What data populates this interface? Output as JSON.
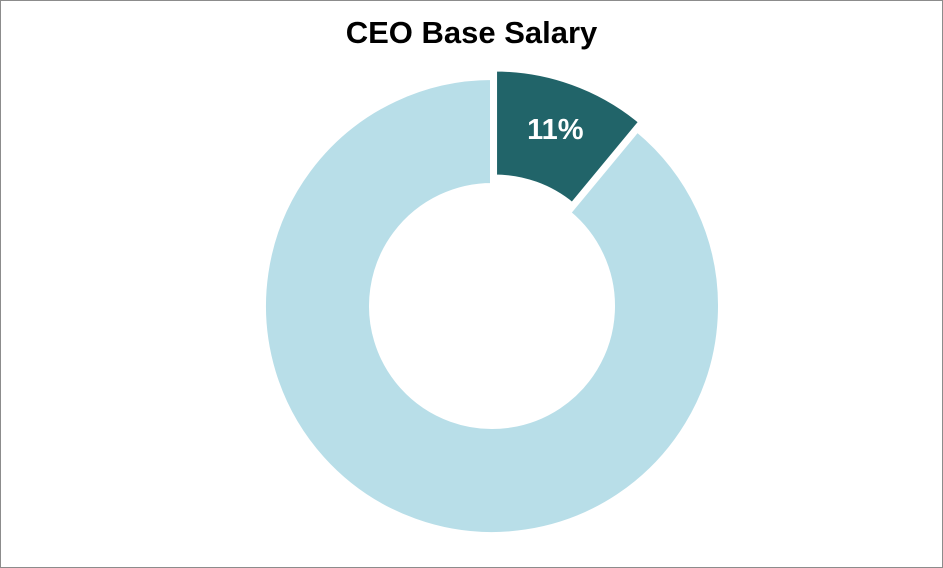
{
  "chart_data": {
    "type": "pie",
    "variant": "donut",
    "title": "CEO Base Salary",
    "slices": [
      {
        "value": 11,
        "label": "11%",
        "color": "#216469",
        "exploded": true,
        "show_label": true
      },
      {
        "value": 89,
        "label": "",
        "color": "#b8dee8",
        "exploded": false,
        "show_label": false
      }
    ],
    "legend": "none"
  }
}
